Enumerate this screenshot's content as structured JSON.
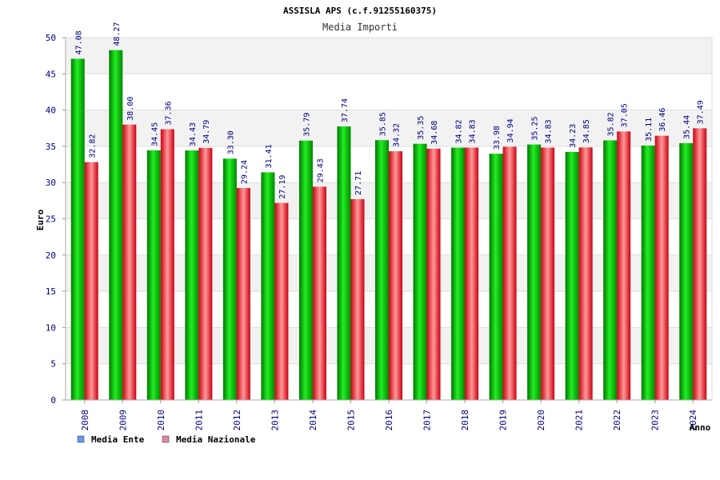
{
  "chart_data": {
    "type": "bar",
    "title": "ASSISLA APS (c.f.91255160375)",
    "subtitle": "Media Importi",
    "xlabel": "Anno",
    "ylabel": "Euro",
    "ylim": [
      0,
      50
    ],
    "yticks": [
      "0",
      "5",
      "10",
      "15",
      "20",
      "25",
      "30",
      "35",
      "40",
      "45",
      "50"
    ],
    "categories": [
      "2008",
      "2009",
      "2010",
      "2011",
      "2012",
      "2013",
      "2014",
      "2015",
      "2016",
      "2017",
      "2018",
      "2019",
      "2020",
      "2021",
      "2022",
      "2023",
      "2024"
    ],
    "series": [
      {
        "name": "Media Ente",
        "color": "#00aa00",
        "legend_color": "#6699ee",
        "values": [
          47.08,
          48.27,
          34.45,
          34.43,
          33.3,
          31.41,
          35.79,
          37.74,
          35.85,
          35.35,
          34.82,
          33.98,
          35.25,
          34.23,
          35.82,
          35.11,
          35.44
        ],
        "labels": [
          "47.08",
          "48.27",
          "34.45",
          "34.43",
          "33.30",
          "31.41",
          "35.79",
          "37.74",
          "35.85",
          "35.35",
          "34.82",
          "33.98",
          "35.25",
          "34.23",
          "35.82",
          "35.11",
          "35.44"
        ]
      },
      {
        "name": "Media Nazionale",
        "color": "#ee2233",
        "legend_color": "#dd88aa",
        "values": [
          32.82,
          38.0,
          37.36,
          34.79,
          29.24,
          27.19,
          29.43,
          27.71,
          34.32,
          34.68,
          34.83,
          34.94,
          34.83,
          34.85,
          37.05,
          36.46,
          37.49
        ],
        "labels": [
          "32.82",
          "38.00",
          "37.36",
          "34.79",
          "29.24",
          "27.19",
          "29.43",
          "27.71",
          "34.32",
          "34.68",
          "34.83",
          "34.94",
          "34.83",
          "34.85",
          "37.05",
          "36.46",
          "37.49"
        ]
      }
    ],
    "grid": true,
    "legend_position": "bottom-left"
  }
}
